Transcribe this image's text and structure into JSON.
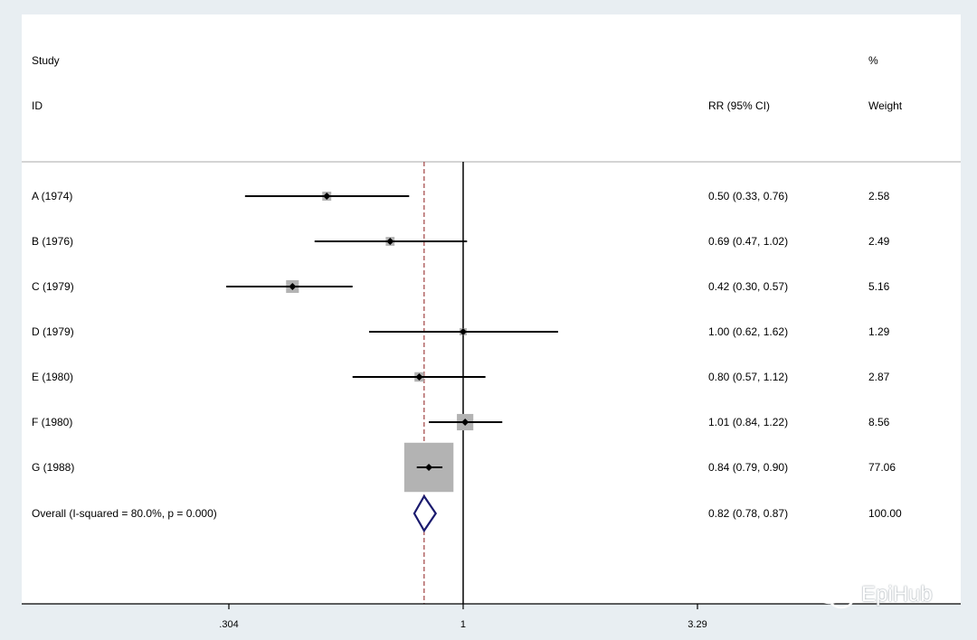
{
  "headers": {
    "study_line1": "Study",
    "study_line2": "ID",
    "effect": "RR (95% CI)",
    "weight_line1": "%",
    "weight_line2": "Weight"
  },
  "chart_data": {
    "type": "forest",
    "x_scale": "log",
    "xlim": [
      0.304,
      3.29
    ],
    "x_ticks": [
      0.304,
      1,
      3.29
    ],
    "x_tick_labels": [
      ".304",
      "1",
      "3.29"
    ],
    "null_line": 1,
    "overall_line": 0.82,
    "studies": [
      {
        "id": "A (1974)",
        "rr": 0.5,
        "lo": 0.33,
        "hi": 0.76,
        "ci_text": "0.50 (0.33, 0.76)",
        "weight": 2.58,
        "weight_text": "2.58"
      },
      {
        "id": "B (1976)",
        "rr": 0.69,
        "lo": 0.47,
        "hi": 1.02,
        "ci_text": "0.69 (0.47, 1.02)",
        "weight": 2.49,
        "weight_text": "2.49"
      },
      {
        "id": "C (1979)",
        "rr": 0.42,
        "lo": 0.3,
        "hi": 0.57,
        "ci_text": "0.42 (0.30, 0.57)",
        "weight": 5.16,
        "weight_text": "5.16"
      },
      {
        "id": "D (1979)",
        "rr": 1.0,
        "lo": 0.62,
        "hi": 1.62,
        "ci_text": "1.00 (0.62, 1.62)",
        "weight": 1.29,
        "weight_text": "1.29"
      },
      {
        "id": "E (1980)",
        "rr": 0.8,
        "lo": 0.57,
        "hi": 1.12,
        "ci_text": "0.80 (0.57, 1.12)",
        "weight": 2.87,
        "weight_text": "2.87"
      },
      {
        "id": "F (1980)",
        "rr": 1.01,
        "lo": 0.84,
        "hi": 1.22,
        "ci_text": "1.01 (0.84, 1.22)",
        "weight": 8.56,
        "weight_text": "8.56"
      },
      {
        "id": "G (1988)",
        "rr": 0.84,
        "lo": 0.79,
        "hi": 0.9,
        "ci_text": "0.84 (0.79, 0.90)",
        "weight": 77.06,
        "weight_text": "77.06"
      }
    ],
    "overall": {
      "id": "Overall  (I-squared = 80.0%, p = 0.000)",
      "rr": 0.82,
      "lo": 0.78,
      "hi": 0.87,
      "ci_text": "0.82 (0.78, 0.87)",
      "weight_text": "100.00"
    }
  },
  "colors": {
    "box": "#b3b3b3",
    "diamond": "#1a1a6e",
    "overall_line": "#a04040",
    "axis": "#000000",
    "separator": "#bbbbbb"
  },
  "watermark": {
    "text": "EpiHub",
    "icon": "wechat-icon"
  }
}
